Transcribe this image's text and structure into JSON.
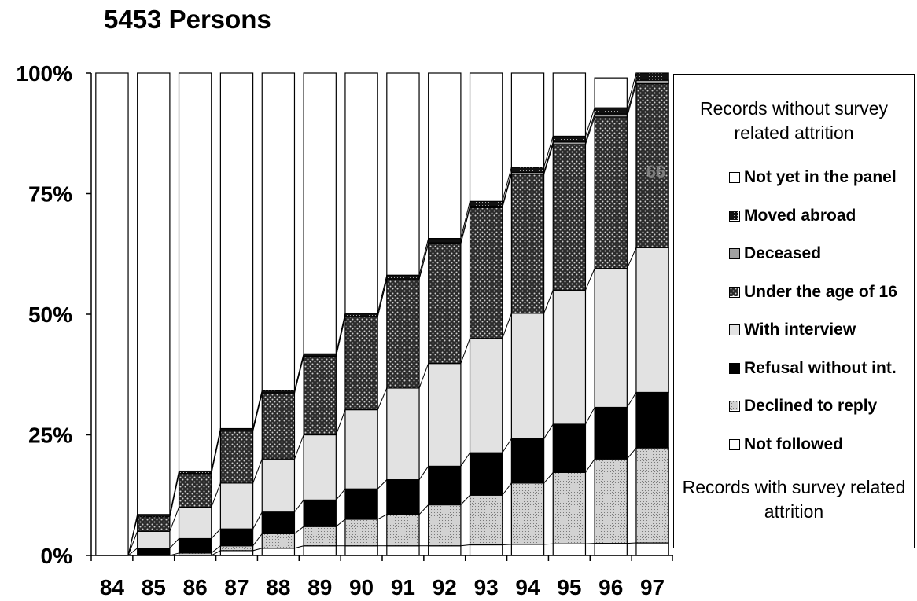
{
  "title": "5453 Persons",
  "chart_data": {
    "type": "bar",
    "stacked": true,
    "title": "5453 Persons",
    "xlabel": "",
    "ylabel": "",
    "ylim": [
      0,
      100
    ],
    "yticks": [
      "0%",
      "25%",
      "50%",
      "75%",
      "100%"
    ],
    "categories": [
      "84",
      "85",
      "86",
      "87",
      "88",
      "89",
      "90",
      "91",
      "92",
      "93",
      "94",
      "95",
      "96",
      "97"
    ],
    "series": [
      {
        "name": "Not followed",
        "pattern": "white",
        "values": [
          0,
          0,
          0,
          1,
          1.5,
          2,
          2,
          2,
          2,
          2.2,
          2.3,
          2.4,
          2.5,
          2.6
        ]
      },
      {
        "name": "Declined to reply",
        "pattern": "light-dots",
        "values": [
          0,
          0,
          0.5,
          1,
          3,
          4,
          5.5,
          6.5,
          8.5,
          10.3,
          12.7,
          14.8,
          17.5,
          19.7
        ]
      },
      {
        "name": "Refusal without int.",
        "pattern": "black",
        "values": [
          0,
          1.5,
          3,
          3.5,
          4.5,
          5.5,
          6.3,
          7.2,
          8,
          8.8,
          9.2,
          10,
          10.7,
          11.5
        ]
      },
      {
        "name": "With interview",
        "pattern": "light-gray",
        "values": [
          0,
          3.5,
          6.5,
          9.5,
          11,
          13.5,
          16.4,
          19,
          21.3,
          23.7,
          26,
          27.8,
          28.8,
          30
        ]
      },
      {
        "name": "Under the age of 16",
        "pattern": "dark-dots",
        "values": [
          0,
          3,
          7,
          10.8,
          13.7,
          16.3,
          19.3,
          22.6,
          24.8,
          27.1,
          28.8,
          30.2,
          31.4,
          34
        ]
      },
      {
        "name": "Deceased",
        "pattern": "gray",
        "values": [
          0,
          0,
          0,
          0,
          0,
          0,
          0,
          0,
          0.2,
          0.3,
          0.4,
          0.5,
          0.6,
          0.7
        ]
      },
      {
        "name": "Moved abroad",
        "pattern": "dark-cross",
        "values": [
          0,
          0.5,
          0.5,
          0.5,
          0.5,
          0.5,
          0.7,
          0.8,
          0.9,
          1.0,
          1.1,
          1.2,
          1.3,
          1.5
        ]
      },
      {
        "name": "Not yet in the panel",
        "pattern": "white",
        "values": [
          100,
          91.5,
          82.5,
          73.7,
          65.8,
          58.2,
          49.8,
          41.9,
          34.3,
          26.6,
          19.5,
          13.1,
          6.2,
          0
        ]
      }
    ],
    "legend": {
      "position": "right",
      "heading_top": "Records without survey related attrition",
      "heading_bottom": "Records with survey related attrition",
      "items": [
        "Not yet in the panel",
        "Moved abroad",
        "Deceased",
        "Under the age of 16",
        "With interview",
        "Refusal without int.",
        "Declined to reply",
        "Not followed"
      ],
      "item_patterns": [
        "white",
        "dark-cross",
        "gray",
        "dark-dots",
        "light-gray",
        "black",
        "light-dots",
        "white"
      ]
    },
    "annotations": [
      "66"
    ]
  }
}
